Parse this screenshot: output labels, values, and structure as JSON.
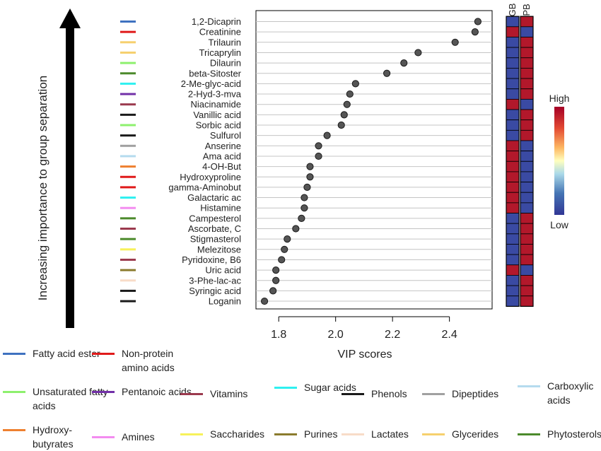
{
  "chart_data": {
    "type": "scatter",
    "xlabel": "VIP scores",
    "ylabel": "Increasing importance to group separation",
    "xlim": [
      1.72,
      2.55
    ],
    "xticks": [
      1.8,
      2.0,
      2.2,
      2.4
    ],
    "xtick_labels": [
      "1.8",
      "2.0",
      "2.2",
      "2.4"
    ],
    "categories": [
      "1,2-Dicaprin",
      "Creatinine",
      "Trilaurin",
      "Tricaprylin",
      "Dilaurin",
      "beta-Sitoster",
      "2-Me-glyc-acid",
      "2-Hyd-3-mva",
      "Niacinamide",
      "Vanillic acid",
      "Sorbic acid",
      "Sulfurol",
      "Anserine",
      "Ama acid",
      "4-OH-But",
      "Hydroxyproline",
      "gamma-Aminobut",
      "Galactaric ac",
      "Histamine",
      "Campesterol",
      "Ascorbate, C",
      "Stigmasterol",
      "Melezitose",
      "Pyridoxine, B6",
      "Uric acid",
      "3-Phe-lac-ac",
      "Syringic acid",
      "Loganin"
    ],
    "values": [
      2.5,
      2.49,
      2.42,
      2.29,
      2.24,
      2.18,
      2.07,
      2.05,
      2.04,
      2.03,
      2.02,
      1.97,
      1.94,
      1.94,
      1.91,
      1.91,
      1.9,
      1.89,
      1.89,
      1.88,
      1.86,
      1.83,
      1.82,
      1.81,
      1.79,
      1.79,
      1.78,
      1.75
    ],
    "class_colors": [
      "#3f72c0",
      "#e01a1a",
      "#f6d06e",
      "#f6d06e",
      "#8ef06e",
      "#4c8a2c",
      "#2ff0f0",
      "#7230a8",
      "#9b3a4e",
      "#1a1a1a",
      "#8ef06e",
      "#1a1a1a",
      "#a0a0a0",
      "#b5dbee",
      "#ee8030",
      "#e01a1a",
      "#e01a1a",
      "#2ff0f0",
      "#f38cf0",
      "#4c8a2c",
      "#9b3a4e",
      "#4c8a2c",
      "#f7f15a",
      "#9b3a4e",
      "#8b7b2e",
      "#f8dcc8",
      "#1a1a1a",
      "#1a1a1a"
    ],
    "heatmap": {
      "columns": [
        "GB",
        "PB"
      ],
      "cells": [
        [
          "low",
          "high"
        ],
        [
          "high",
          "low"
        ],
        [
          "low",
          "high"
        ],
        [
          "low",
          "high"
        ],
        [
          "low",
          "high"
        ],
        [
          "low",
          "high"
        ],
        [
          "low",
          "high"
        ],
        [
          "low",
          "high"
        ],
        [
          "high",
          "low"
        ],
        [
          "low",
          "high"
        ],
        [
          "low",
          "high"
        ],
        [
          "low",
          "high"
        ],
        [
          "high",
          "low"
        ],
        [
          "high",
          "low"
        ],
        [
          "high",
          "low"
        ],
        [
          "high",
          "low"
        ],
        [
          "high",
          "low"
        ],
        [
          "high",
          "low"
        ],
        [
          "high",
          "low"
        ],
        [
          "low",
          "high"
        ],
        [
          "low",
          "high"
        ],
        [
          "low",
          "high"
        ],
        [
          "low",
          "high"
        ],
        [
          "low",
          "high"
        ],
        [
          "high",
          "low"
        ],
        [
          "low",
          "high"
        ],
        [
          "low",
          "high"
        ],
        [
          "low",
          "high"
        ]
      ],
      "high_color": "#b2182b",
      "low_color": "#3a4aa3",
      "scale_high_label": "High",
      "scale_low_label": "Low"
    },
    "legend": [
      {
        "label": "Fatty acid ester",
        "color": "#3f72c0"
      },
      {
        "label": "Non-protein amino acids",
        "color": "#e01a1a"
      },
      {
        "label": "Unsaturated fatty acids",
        "color": "#8ef06e"
      },
      {
        "label": "Pentanoic acids",
        "color": "#7230a8"
      },
      {
        "label": "Vitamins",
        "color": "#9b3a4e"
      },
      {
        "label": "Sugar acids",
        "color": "#2ff0f0"
      },
      {
        "label": "Phenols",
        "color": "#1a1a1a"
      },
      {
        "label": "Dipeptides",
        "color": "#a0a0a0"
      },
      {
        "label": "Carboxylic acids",
        "color": "#b5dbee"
      },
      {
        "label": "Hydroxy-butyrates",
        "color": "#ee8030"
      },
      {
        "label": "Amines",
        "color": "#f38cf0"
      },
      {
        "label": "Saccharides",
        "color": "#f7f15a"
      },
      {
        "label": "Purines",
        "color": "#8b7b2e"
      },
      {
        "label": "Lactates",
        "color": "#f8dcc8"
      },
      {
        "label": "Glycerides",
        "color": "#f6d06e"
      },
      {
        "label": "Phytosterols",
        "color": "#4c8a2c"
      }
    ]
  }
}
